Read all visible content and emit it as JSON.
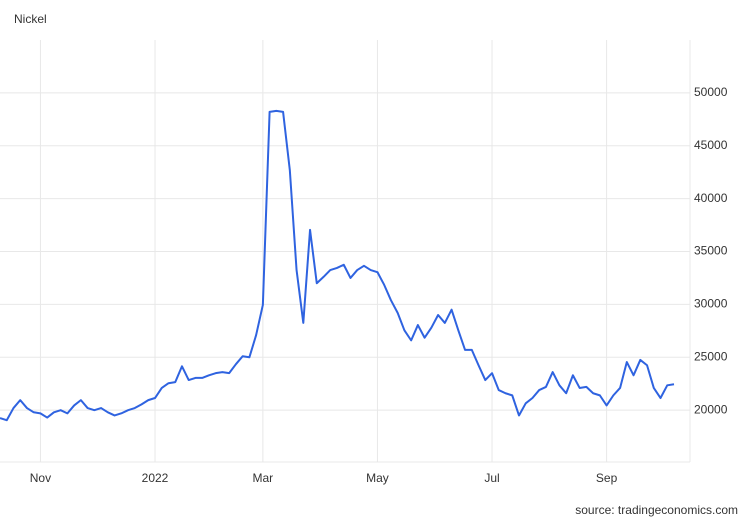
{
  "chart_data": {
    "type": "line",
    "title": "Nickel",
    "source": "source: tradingeconomics.com",
    "categories": [
      null,
      null,
      null,
      null,
      null,
      null,
      "Nov",
      null,
      null,
      null,
      null,
      null,
      null,
      null,
      null,
      null,
      null,
      null,
      null,
      null,
      null,
      null,
      null,
      "2022",
      null,
      null,
      null,
      null,
      null,
      null,
      null,
      null,
      null,
      null,
      null,
      null,
      null,
      null,
      null,
      "Mar",
      null,
      null,
      null,
      null,
      null,
      null,
      null,
      null,
      null,
      null,
      null,
      null,
      null,
      null,
      null,
      null,
      "May",
      null,
      null,
      null,
      null,
      null,
      null,
      null,
      null,
      null,
      null,
      null,
      null,
      null,
      null,
      null,
      null,
      "Jul",
      null,
      null,
      null,
      null,
      null,
      null,
      null,
      null,
      null,
      null,
      null,
      null,
      null,
      null,
      null,
      null,
      "Sep",
      null,
      null,
      null,
      null,
      null,
      null,
      null,
      null,
      null,
      null
    ],
    "series": [
      {
        "name": "Nickel",
        "color": "#2f63e0",
        "values": [
          19250,
          19050,
          20200,
          20950,
          20200,
          19800,
          19700,
          19300,
          19800,
          20000,
          19700,
          20450,
          20950,
          20200,
          20000,
          20200,
          19800,
          19500,
          19700,
          20000,
          20200,
          20550,
          20950,
          21150,
          22100,
          22550,
          22650,
          24150,
          22850,
          23050,
          23050,
          23300,
          23500,
          23600,
          23500,
          24350,
          25100,
          25000,
          27100,
          29950,
          48200,
          48300,
          48200,
          42700,
          33250,
          28250,
          37050,
          32000,
          32600,
          33250,
          33450,
          33750,
          32500,
          33250,
          33650,
          33250,
          33050,
          31850,
          30400,
          29200,
          27550,
          26600,
          28050,
          26850,
          27800,
          29000,
          28250,
          29500,
          27550,
          25700,
          25700,
          24250,
          22850,
          23500,
          21900,
          21600,
          21400,
          19500,
          20650,
          21150,
          21900,
          22200,
          23600,
          22350,
          21600,
          23300,
          22100,
          22200,
          21600,
          21400,
          20450,
          21400,
          22100,
          24550,
          23300,
          24750,
          24250,
          22100,
          21150,
          22350,
          22450
        ]
      }
    ],
    "ylim": [
      15100,
      55000
    ],
    "yticks": [
      20000,
      25000,
      30000,
      35000,
      40000,
      45000,
      50000
    ],
    "grid": true
  }
}
